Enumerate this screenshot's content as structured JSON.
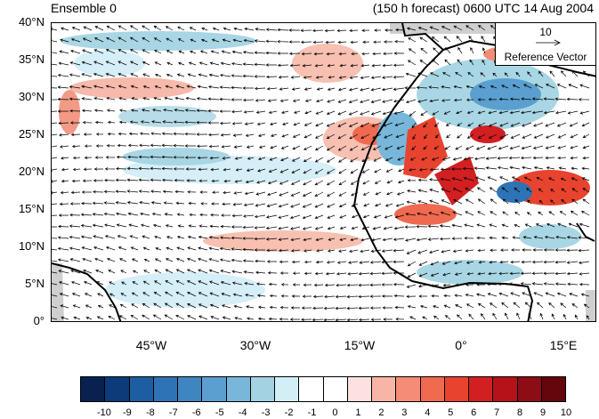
{
  "header": {
    "left_title": "Ensemble 0",
    "right_title": "(150 h forecast) 0600 UTC 14 Aug 2004"
  },
  "map": {
    "lat_labels": [
      "40°N",
      "35°N",
      "30°N",
      "25°N",
      "20°N",
      "15°N",
      "10°N",
      "5°N",
      "0°"
    ],
    "lon_labels": [
      "45°W",
      "30°W",
      "15°W",
      "0°",
      "15°E"
    ],
    "land_color": "#c8c8c8",
    "coast_color": "#000000"
  },
  "reference_vector": {
    "magnitude": "10",
    "label": "Reference Vector"
  },
  "colorbar": {
    "colors": [
      "#08214f",
      "#0d3b7a",
      "#1c5ea1",
      "#2e73b5",
      "#3f86c1",
      "#5a9fcf",
      "#78b7d9",
      "#a3d3e3",
      "#d2eef7",
      "#ffffff",
      "#ffffff",
      "#fde0e0",
      "#f8b5a6",
      "#f48c77",
      "#ef6a4f",
      "#e8432e",
      "#d21f22",
      "#b51319",
      "#8c0d14",
      "#64060c"
    ],
    "labels": [
      "-10",
      "-9",
      "-8",
      "-7",
      "-6",
      "-5",
      "-4",
      "-3",
      "-2",
      "-1",
      "0",
      "1",
      "2",
      "3",
      "4",
      "5",
      "6",
      "7",
      "8",
      "9",
      "10"
    ]
  }
}
